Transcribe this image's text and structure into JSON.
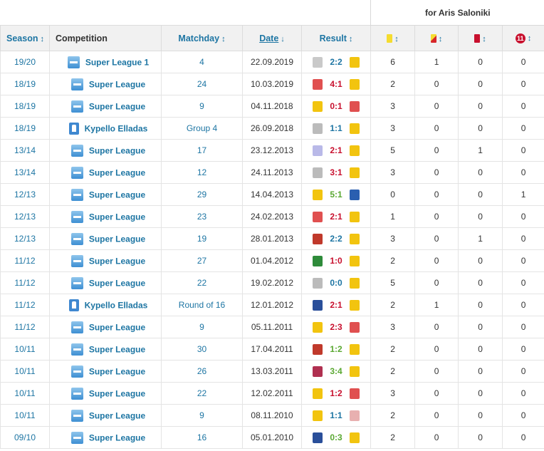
{
  "group_header": "for Aris Saloniki",
  "columns": {
    "season": "Season",
    "competition": "Competition",
    "matchday": "Matchday",
    "date": "Date",
    "result": "Result",
    "sort_icon": "↕",
    "date_sort_icon": "↓",
    "sub_badge": "11"
  },
  "colors": {
    "link": "#1d75a3",
    "win": "#5aa832",
    "loss": "#c8102e",
    "draw": "#1d75a3"
  },
  "rows": [
    {
      "season": "19/20",
      "competition": "Super League 1",
      "type": "league",
      "matchday": "4",
      "date": "22.09.2019",
      "score": "2:2",
      "outcome": "draw",
      "home": "#c9c9c9",
      "away": "#f2c40f",
      "c1": "6",
      "c2": "1",
      "c3": "0",
      "c4": "0"
    },
    {
      "season": "18/19",
      "competition": "Super League",
      "type": "league",
      "matchday": "24",
      "date": "10.03.2019",
      "score": "4:1",
      "outcome": "loss",
      "home": "#e05050",
      "away": "#f2c40f",
      "c1": "2",
      "c2": "0",
      "c3": "0",
      "c4": "0"
    },
    {
      "season": "18/19",
      "competition": "Super League",
      "type": "league",
      "matchday": "9",
      "date": "04.11.2018",
      "score": "0:1",
      "outcome": "loss",
      "home": "#f2c40f",
      "away": "#e05050",
      "c1": "3",
      "c2": "0",
      "c3": "0",
      "c4": "0"
    },
    {
      "season": "18/19",
      "competition": "Kypello Elladas",
      "type": "cup",
      "matchday": "Group 4",
      "date": "26.09.2018",
      "score": "1:1",
      "outcome": "draw",
      "home": "#bbbbbb",
      "away": "#f2c40f",
      "c1": "3",
      "c2": "0",
      "c3": "0",
      "c4": "0"
    },
    {
      "season": "13/14",
      "competition": "Super League",
      "type": "league",
      "matchday": "17",
      "date": "23.12.2013",
      "score": "2:1",
      "outcome": "loss",
      "home": "#b9b9e8",
      "away": "#f2c40f",
      "c1": "5",
      "c2": "0",
      "c3": "1",
      "c4": "0"
    },
    {
      "season": "13/14",
      "competition": "Super League",
      "type": "league",
      "matchday": "12",
      "date": "24.11.2013",
      "score": "3:1",
      "outcome": "loss",
      "home": "#bbbbbb",
      "away": "#f2c40f",
      "c1": "3",
      "c2": "0",
      "c3": "0",
      "c4": "0"
    },
    {
      "season": "12/13",
      "competition": "Super League",
      "type": "league",
      "matchday": "29",
      "date": "14.04.2013",
      "score": "5:1",
      "outcome": "win",
      "home": "#f2c40f",
      "away": "#2a5fb0",
      "c1": "0",
      "c2": "0",
      "c3": "0",
      "c4": "1"
    },
    {
      "season": "12/13",
      "competition": "Super League",
      "type": "league",
      "matchday": "23",
      "date": "24.02.2013",
      "score": "2:1",
      "outcome": "loss",
      "home": "#e05050",
      "away": "#f2c40f",
      "c1": "1",
      "c2": "0",
      "c3": "0",
      "c4": "0"
    },
    {
      "season": "12/13",
      "competition": "Super League",
      "type": "league",
      "matchday": "19",
      "date": "28.01.2013",
      "score": "2:2",
      "outcome": "draw",
      "home": "#c0392b",
      "away": "#f2c40f",
      "c1": "3",
      "c2": "0",
      "c3": "1",
      "c4": "0"
    },
    {
      "season": "11/12",
      "competition": "Super League",
      "type": "league",
      "matchday": "27",
      "date": "01.04.2012",
      "score": "1:0",
      "outcome": "loss",
      "home": "#2e8b3a",
      "away": "#f2c40f",
      "c1": "2",
      "c2": "0",
      "c3": "0",
      "c4": "0"
    },
    {
      "season": "11/12",
      "competition": "Super League",
      "type": "league",
      "matchday": "22",
      "date": "19.02.2012",
      "score": "0:0",
      "outcome": "draw",
      "home": "#bbbbbb",
      "away": "#f2c40f",
      "c1": "5",
      "c2": "0",
      "c3": "0",
      "c4": "0"
    },
    {
      "season": "11/12",
      "competition": "Kypello Elladas",
      "type": "cup",
      "matchday": "Round of 16",
      "date": "12.01.2012",
      "score": "2:1",
      "outcome": "loss",
      "home": "#2a4f9a",
      "away": "#f2c40f",
      "c1": "2",
      "c2": "1",
      "c3": "0",
      "c4": "0"
    },
    {
      "season": "11/12",
      "competition": "Super League",
      "type": "league",
      "matchday": "9",
      "date": "05.11.2011",
      "score": "2:3",
      "outcome": "loss",
      "home": "#f2c40f",
      "away": "#e05050",
      "c1": "3",
      "c2": "0",
      "c3": "0",
      "c4": "0"
    },
    {
      "season": "10/11",
      "competition": "Super League",
      "type": "league",
      "matchday": "30",
      "date": "17.04.2011",
      "score": "1:2",
      "outcome": "win",
      "home": "#c0392b",
      "away": "#f2c40f",
      "c1": "2",
      "c2": "0",
      "c3": "0",
      "c4": "0"
    },
    {
      "season": "10/11",
      "competition": "Super League",
      "type": "league",
      "matchday": "26",
      "date": "13.03.2011",
      "score": "3:4",
      "outcome": "win",
      "home": "#b03050",
      "away": "#f2c40f",
      "c1": "2",
      "c2": "0",
      "c3": "0",
      "c4": "0"
    },
    {
      "season": "10/11",
      "competition": "Super League",
      "type": "league",
      "matchday": "22",
      "date": "12.02.2011",
      "score": "1:2",
      "outcome": "loss",
      "home": "#f2c40f",
      "away": "#e05050",
      "c1": "3",
      "c2": "0",
      "c3": "0",
      "c4": "0"
    },
    {
      "season": "10/11",
      "competition": "Super League",
      "type": "league",
      "matchday": "9",
      "date": "08.11.2010",
      "score": "1:1",
      "outcome": "draw",
      "home": "#f2c40f",
      "away": "#e8b0b0",
      "c1": "2",
      "c2": "0",
      "c3": "0",
      "c4": "0"
    },
    {
      "season": "09/10",
      "competition": "Super League",
      "type": "league",
      "matchday": "16",
      "date": "05.01.2010",
      "score": "0:3",
      "outcome": "win",
      "home": "#2a4f9a",
      "away": "#f2c40f",
      "c1": "2",
      "c2": "0",
      "c3": "0",
      "c4": "0"
    }
  ]
}
